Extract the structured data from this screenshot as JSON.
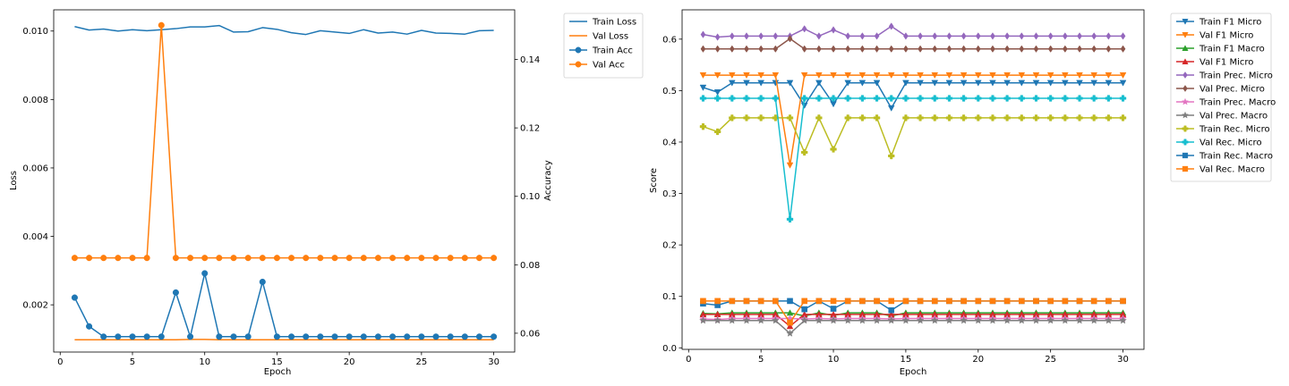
{
  "chart_data": [
    {
      "type": "line",
      "xlabel": "Epoch",
      "ylabel": "Loss",
      "y2label": "Accuracy",
      "xlim": [
        -0.45,
        31.45
      ],
      "ylim": [
        0.00062,
        0.01062
      ],
      "y2lim": [
        0.0545,
        0.1545
      ],
      "xticks": [
        0,
        5,
        10,
        15,
        20,
        25,
        30
      ],
      "yticks": [
        0.002,
        0.004,
        0.006,
        0.008,
        0.01
      ],
      "yticks_labels": [
        "0.002",
        "0.004",
        "0.006",
        "0.008",
        "0.010"
      ],
      "y2ticks": [
        0.06,
        0.08,
        0.1,
        0.12,
        0.14
      ],
      "y2ticks_labels": [
        "0.06",
        "0.08",
        "0.10",
        "0.12",
        "0.14"
      ],
      "legend_position": "outside upper right",
      "x": [
        1,
        2,
        3,
        4,
        5,
        6,
        7,
        8,
        9,
        10,
        11,
        12,
        13,
        14,
        15,
        16,
        17,
        18,
        19,
        20,
        21,
        22,
        23,
        24,
        25,
        26,
        27,
        28,
        29,
        30
      ],
      "series": [
        {
          "name": "Train Loss",
          "axis": "left",
          "color": "#1f77b4",
          "marker": "none",
          "values": [
            0.01013,
            0.01003,
            0.01006,
            0.01,
            0.01004,
            0.01001,
            0.01004,
            0.01007,
            0.01012,
            0.01012,
            0.01016,
            0.00997,
            0.00998,
            0.0101,
            0.01005,
            0.00995,
            0.0099,
            0.01001,
            0.00997,
            0.00993,
            0.01004,
            0.00994,
            0.00997,
            0.00991,
            0.01002,
            0.00994,
            0.00993,
            0.00991,
            0.01001,
            0.01002
          ]
        },
        {
          "name": "Val Loss",
          "axis": "left",
          "color": "#ff7f0e",
          "marker": "none",
          "values": [
            0.00098,
            0.00098,
            0.00098,
            0.00098,
            0.00098,
            0.00098,
            0.00098,
            0.00098,
            0.00099,
            0.00099,
            0.00098,
            0.00098,
            0.00098,
            0.00098,
            0.00098,
            0.00098,
            0.00098,
            0.00098,
            0.00098,
            0.00098,
            0.00098,
            0.00098,
            0.00098,
            0.00098,
            0.00098,
            0.00098,
            0.00098,
            0.00098,
            0.00098,
            0.00098
          ]
        },
        {
          "name": "Train Acc",
          "axis": "right",
          "color": "#1f77b4",
          "marker": "o",
          "values": [
            0.0704,
            0.062,
            0.059,
            0.059,
            0.059,
            0.059,
            0.059,
            0.0719,
            0.059,
            0.0775,
            0.059,
            0.059,
            0.059,
            0.075,
            0.059,
            0.059,
            0.059,
            0.059,
            0.059,
            0.059,
            0.059,
            0.059,
            0.059,
            0.059,
            0.059,
            0.059,
            0.059,
            0.059,
            0.059,
            0.059
          ]
        },
        {
          "name": "Val Acc",
          "axis": "right",
          "color": "#ff7f0e",
          "marker": "o",
          "values": [
            0.082,
            0.082,
            0.082,
            0.082,
            0.082,
            0.082,
            0.15,
            0.082,
            0.082,
            0.082,
            0.082,
            0.082,
            0.082,
            0.082,
            0.082,
            0.082,
            0.082,
            0.082,
            0.082,
            0.082,
            0.082,
            0.082,
            0.082,
            0.082,
            0.082,
            0.082,
            0.082,
            0.082,
            0.082,
            0.082
          ]
        }
      ]
    },
    {
      "type": "line",
      "xlabel": "Epoch",
      "ylabel": "Score",
      "xlim": [
        -0.45,
        31.45
      ],
      "ylim": [
        -0.003,
        0.657
      ],
      "xticks": [
        0,
        5,
        10,
        15,
        20,
        25,
        30
      ],
      "yticks": [
        0.0,
        0.1,
        0.2,
        0.3,
        0.4,
        0.5,
        0.6
      ],
      "yticks_labels": [
        "0.0",
        "0.1",
        "0.2",
        "0.3",
        "0.4",
        "0.5",
        "0.6"
      ],
      "legend_position": "outside upper right",
      "x": [
        1,
        2,
        3,
        4,
        5,
        6,
        7,
        8,
        9,
        10,
        11,
        12,
        13,
        14,
        15,
        16,
        17,
        18,
        19,
        20,
        21,
        22,
        23,
        24,
        25,
        26,
        27,
        28,
        29,
        30
      ],
      "series": [
        {
          "name": "Train F1 Micro",
          "color": "#1f77b4",
          "marker": "v",
          "values": [
            0.506,
            0.497,
            0.515,
            0.515,
            0.515,
            0.515,
            0.515,
            0.471,
            0.515,
            0.474,
            0.515,
            0.515,
            0.515,
            0.466,
            0.515,
            0.515,
            0.515,
            0.515,
            0.515,
            0.515,
            0.515,
            0.515,
            0.515,
            0.515,
            0.515,
            0.515,
            0.515,
            0.515,
            0.515,
            0.515
          ]
        },
        {
          "name": "Val F1 Micro",
          "color": "#ff7f0e",
          "marker": "v",
          "values": [
            0.53,
            0.53,
            0.53,
            0.53,
            0.53,
            0.53,
            0.355,
            0.53,
            0.53,
            0.53,
            0.53,
            0.53,
            0.53,
            0.53,
            0.53,
            0.53,
            0.53,
            0.53,
            0.53,
            0.53,
            0.53,
            0.53,
            0.53,
            0.53,
            0.53,
            0.53,
            0.53,
            0.53,
            0.53,
            0.53
          ]
        },
        {
          "name": "Train F1 Macro",
          "color": "#2ca02c",
          "marker": "^",
          "values": [
            0.067,
            0.066,
            0.068,
            0.068,
            0.068,
            0.068,
            0.068,
            0.062,
            0.068,
            0.063,
            0.068,
            0.068,
            0.068,
            0.062,
            0.068,
            0.068,
            0.068,
            0.068,
            0.068,
            0.068,
            0.068,
            0.068,
            0.068,
            0.068,
            0.068,
            0.068,
            0.068,
            0.068,
            0.068,
            0.068
          ]
        },
        {
          "name": "Val F1 Micro",
          "color": "#d62728",
          "marker": "^",
          "values": [
            0.065,
            0.065,
            0.065,
            0.065,
            0.065,
            0.065,
            0.042,
            0.065,
            0.065,
            0.065,
            0.065,
            0.065,
            0.065,
            0.065,
            0.065,
            0.065,
            0.065,
            0.065,
            0.065,
            0.065,
            0.065,
            0.065,
            0.065,
            0.065,
            0.065,
            0.065,
            0.065,
            0.065,
            0.065,
            0.065
          ]
        },
        {
          "name": "Train Prec. Micro",
          "color": "#9467bd",
          "marker": "d",
          "values": [
            0.609,
            0.604,
            0.606,
            0.606,
            0.606,
            0.606,
            0.606,
            0.62,
            0.606,
            0.618,
            0.606,
            0.606,
            0.606,
            0.625,
            0.606,
            0.606,
            0.606,
            0.606,
            0.606,
            0.606,
            0.606,
            0.606,
            0.606,
            0.606,
            0.606,
            0.606,
            0.606,
            0.606,
            0.606,
            0.606
          ]
        },
        {
          "name": "Val Prec. Micro",
          "color": "#8c564b",
          "marker": "d",
          "values": [
            0.581,
            0.581,
            0.581,
            0.581,
            0.581,
            0.581,
            0.601,
            0.581,
            0.581,
            0.581,
            0.581,
            0.581,
            0.581,
            0.581,
            0.581,
            0.581,
            0.581,
            0.581,
            0.581,
            0.581,
            0.581,
            0.581,
            0.581,
            0.581,
            0.581,
            0.581,
            0.581,
            0.581,
            0.581,
            0.581
          ]
        },
        {
          "name": "Train Prec. Macro",
          "color": "#e377c2",
          "marker": "*",
          "values": [
            0.056,
            0.055,
            0.057,
            0.057,
            0.057,
            0.057,
            0.057,
            0.056,
            0.057,
            0.056,
            0.057,
            0.057,
            0.057,
            0.056,
            0.057,
            0.057,
            0.057,
            0.057,
            0.057,
            0.057,
            0.057,
            0.057,
            0.057,
            0.057,
            0.057,
            0.057,
            0.057,
            0.057,
            0.057,
            0.057
          ]
        },
        {
          "name": "Val Prec. Macro",
          "color": "#7f7f7f",
          "marker": "*",
          "values": [
            0.053,
            0.053,
            0.053,
            0.053,
            0.053,
            0.053,
            0.028,
            0.053,
            0.053,
            0.053,
            0.053,
            0.053,
            0.053,
            0.053,
            0.053,
            0.053,
            0.053,
            0.053,
            0.053,
            0.053,
            0.053,
            0.053,
            0.053,
            0.053,
            0.053,
            0.053,
            0.053,
            0.053,
            0.053,
            0.053
          ]
        },
        {
          "name": "Train Rec. Micro",
          "color": "#bcbd22",
          "marker": "P",
          "values": [
            0.43,
            0.42,
            0.447,
            0.447,
            0.447,
            0.447,
            0.447,
            0.38,
            0.447,
            0.386,
            0.447,
            0.447,
            0.447,
            0.373,
            0.447,
            0.447,
            0.447,
            0.447,
            0.447,
            0.447,
            0.447,
            0.447,
            0.447,
            0.447,
            0.447,
            0.447,
            0.447,
            0.447,
            0.447,
            0.447
          ]
        },
        {
          "name": "Val Rec. Micro",
          "color": "#17becf",
          "marker": "P",
          "values": [
            0.485,
            0.485,
            0.485,
            0.485,
            0.485,
            0.485,
            0.25,
            0.485,
            0.485,
            0.485,
            0.485,
            0.485,
            0.485,
            0.485,
            0.485,
            0.485,
            0.485,
            0.485,
            0.485,
            0.485,
            0.485,
            0.485,
            0.485,
            0.485,
            0.485,
            0.485,
            0.485,
            0.485,
            0.485,
            0.485
          ]
        },
        {
          "name": "Train Rec. Macro",
          "color": "#1f77b4",
          "marker": "s",
          "values": [
            0.086,
            0.083,
            0.091,
            0.091,
            0.091,
            0.091,
            0.091,
            0.075,
            0.091,
            0.076,
            0.091,
            0.091,
            0.091,
            0.073,
            0.091,
            0.091,
            0.091,
            0.091,
            0.091,
            0.091,
            0.091,
            0.091,
            0.091,
            0.091,
            0.091,
            0.091,
            0.091,
            0.091,
            0.091,
            0.091
          ]
        },
        {
          "name": "Val Rec. Macro",
          "color": "#ff7f0e",
          "marker": "s",
          "values": [
            0.091,
            0.091,
            0.091,
            0.091,
            0.091,
            0.091,
            0.049,
            0.091,
            0.091,
            0.091,
            0.091,
            0.091,
            0.091,
            0.091,
            0.091,
            0.091,
            0.091,
            0.091,
            0.091,
            0.091,
            0.091,
            0.091,
            0.091,
            0.091,
            0.091,
            0.091,
            0.091,
            0.091,
            0.091,
            0.091
          ]
        }
      ]
    }
  ]
}
